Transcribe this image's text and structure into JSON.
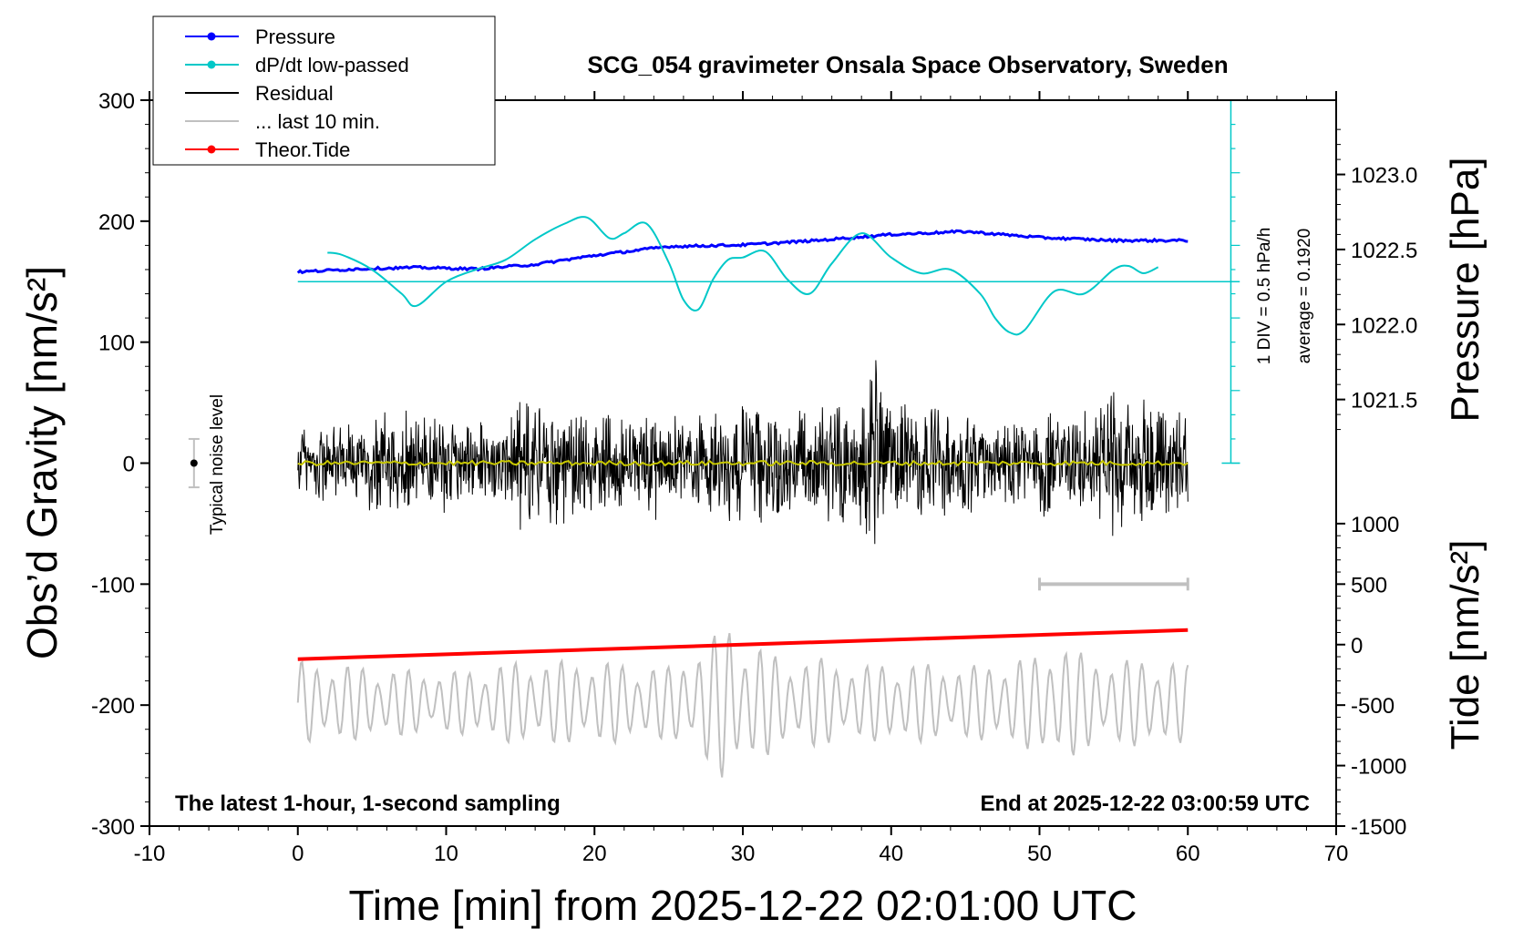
{
  "chart_data": {
    "type": "line",
    "title": "SCG_054 gravimeter Onsala Space Observatory, Sweden",
    "xlabel": "Time [min] from 2025-12-22 02:01:00 UTC",
    "ylabel_left": "Obs’d Gravity [nm/s²]",
    "ylabel_right_top": "Pressure [hPa]",
    "ylabel_right_bottom": "Tide [nm/s²]",
    "xlim": [
      -10,
      70
    ],
    "ylim": [
      -300,
      300
    ],
    "x_ticks": [
      "-10",
      "0",
      "10",
      "20",
      "30",
      "40",
      "50",
      "60",
      "70"
    ],
    "y_ticks": [
      "300",
      "200",
      "100",
      "0",
      "-100",
      "-200",
      "-300"
    ],
    "pressure_axis": {
      "ticks": [
        "1023.0",
        "1022.5",
        "1022.0",
        "1021.5"
      ],
      "tick_values": [
        1023.0,
        1022.5,
        1022.0,
        1021.5
      ]
    },
    "tide_axis": {
      "ticks": [
        "1000",
        "500",
        "0",
        "-500",
        "-1000",
        "-1500"
      ],
      "tick_values": [
        1000,
        500,
        0,
        -500,
        -1000,
        -1500
      ]
    },
    "legend": [
      {
        "label": "Pressure",
        "color": "#0000ff",
        "marker": true
      },
      {
        "label": "dP/dt low-passed",
        "color": "#00c8c8",
        "marker": true
      },
      {
        "label": "Residual",
        "color": "#000000",
        "marker": false
      },
      {
        "label": "... last 10 min.",
        "color": "#c0c0c0",
        "marker": false
      },
      {
        "label": "Theor.Tide",
        "color": "#ff0000",
        "marker": true
      }
    ],
    "noise_level_label": "Typical noise level",
    "noise_level": {
      "x": -7,
      "y": 0,
      "err": 20
    },
    "dpdt_scale_label": "1 DIV = 0.5 hPa/h",
    "dpdt_average_label": "average = 0.1920",
    "bottom_left_note": "The latest 1-hour, 1-second sampling",
    "bottom_right_note": "End at 2025-12-22 03:00:59 UTC",
    "last10_bracket": [
      50,
      60
    ],
    "series": [
      {
        "name": "Pressure",
        "unit": "hPa",
        "x": [
          0,
          4,
          8,
          12,
          16,
          20,
          25,
          30,
          35,
          40,
          45,
          50,
          55,
          60
        ],
        "values": [
          1022.35,
          1022.37,
          1022.38,
          1022.37,
          1022.4,
          1022.46,
          1022.52,
          1022.53,
          1022.56,
          1022.6,
          1022.62,
          1022.58,
          1022.56,
          1022.56
        ]
      },
      {
        "name": "dP/dt low-passed",
        "unit": "nm/s² (display)",
        "x": [
          2,
          3,
          5,
          7,
          8,
          10,
          12,
          14,
          16,
          18,
          19.5,
          21,
          22,
          23.5,
          25,
          26,
          27,
          28,
          29,
          30,
          31.5,
          33,
          34.5,
          36,
          38,
          40,
          42,
          44,
          46,
          47,
          48,
          49,
          51,
          53,
          55,
          56,
          57,
          58
        ],
        "values": [
          174,
          172,
          160,
          140,
          130,
          150,
          160,
          168,
          185,
          198,
          203,
          186,
          190,
          198,
          166,
          135,
          127,
          152,
          168,
          170,
          175,
          152,
          140,
          165,
          190,
          170,
          157,
          160,
          140,
          120,
          108,
          110,
          142,
          140,
          160,
          163,
          157,
          162
        ]
      },
      {
        "name": "Residual",
        "unit": "nm/s²",
        "x_range": [
          0,
          60
        ],
        "envelope_x": [
          0,
          2,
          4,
          6,
          8,
          10,
          12,
          14,
          15,
          16,
          18,
          20,
          22,
          24,
          26,
          28,
          30,
          32,
          34,
          36,
          38,
          38.7,
          40,
          42,
          44,
          46,
          48,
          50,
          52,
          54,
          55,
          56,
          58,
          60
        ],
        "envelope_amp": [
          35,
          40,
          38,
          50,
          55,
          42,
          38,
          40,
          60,
          62,
          55,
          48,
          45,
          55,
          40,
          48,
          58,
          55,
          50,
          58,
          58,
          100,
          60,
          52,
          50,
          45,
          45,
          50,
          45,
          55,
          75,
          60,
          60,
          48
        ]
      },
      {
        "name": "Residual smoothed",
        "color": "#c8c800",
        "x_range": [
          0,
          60
        ],
        "value": 0
      },
      {
        "name": "... last 10 min.",
        "unit": "nm/s² (display, repeated from last 10 min)",
        "x_range": [
          0,
          60
        ],
        "baseline": -198,
        "envelope_x": [
          0,
          5,
          10,
          15,
          20,
          25,
          28,
          29,
          30,
          33,
          35,
          38,
          40,
          45,
          50,
          51,
          53,
          55,
          58,
          60
        ],
        "envelope_amp": [
          35,
          30,
          25,
          35,
          35,
          30,
          55,
          70,
          55,
          35,
          38,
          30,
          35,
          30,
          40,
          55,
          40,
          35,
          38,
          32
        ]
      },
      {
        "name": "Theor.Tide",
        "unit": "nm/s²",
        "x": [
          0,
          60
        ],
        "values": [
          -120,
          120
        ]
      }
    ]
  }
}
